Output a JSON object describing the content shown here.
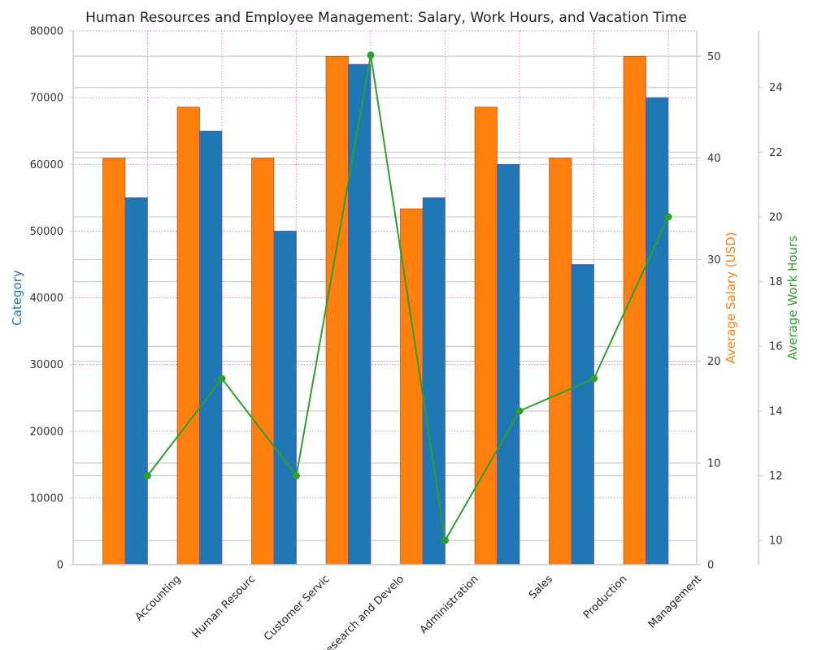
{
  "chart_data": {
    "type": "bar",
    "title": "Human Resources and Employee Management: Salary, Work Hours, and Vacation Time",
    "categories": [
      "Accounting",
      "Human Resources",
      "Customer Service",
      "Research and Development",
      "Administration",
      "Sales",
      "Production",
      "Management"
    ],
    "category_labels_shown": [
      "Accounting",
      "Human Resourc",
      "Customer Servic",
      "Research and Develo",
      "Administration",
      "Sales",
      "Production",
      "Management"
    ],
    "series": [
      {
        "axis": "right-inner",
        "color": "#ff7f0e",
        "kind": "bar",
        "values": [
          40,
          45,
          40,
          50,
          35,
          45,
          40,
          50
        ]
      },
      {
        "axis": "left",
        "color": "#1f77b4",
        "kind": "bar",
        "values": [
          55000,
          65000,
          50000,
          75000,
          55000,
          60000,
          45000,
          70000
        ]
      },
      {
        "axis": "right-outer",
        "color": "#2ca02c",
        "kind": "line",
        "values": [
          12,
          15,
          12,
          25,
          10,
          14,
          15,
          20
        ]
      }
    ],
    "left_axis": {
      "label": "Category",
      "color": "#1f77b4",
      "ylim": [
        0,
        80000
      ],
      "ticks": [
        0,
        10000,
        20000,
        30000,
        40000,
        50000,
        60000,
        70000,
        80000
      ]
    },
    "right_axis_inner": {
      "label": "Average Salary (USD)",
      "color": "#ff7f0e",
      "ylim": [
        0,
        52.5
      ],
      "ticks": [
        0,
        10,
        20,
        30,
        40,
        50
      ]
    },
    "right_axis_outer": {
      "label": "Average Work Hours",
      "color": "#2ca02c",
      "ylim": [
        9.25,
        25.75
      ],
      "ticks": [
        10,
        12,
        14,
        16,
        18,
        20,
        22,
        24
      ]
    },
    "grid": "on",
    "legend": "none"
  }
}
